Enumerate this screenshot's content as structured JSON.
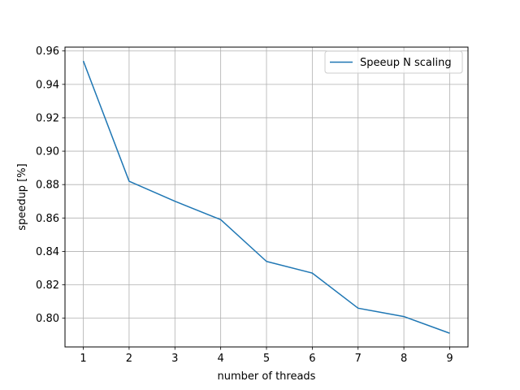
{
  "chart_data": {
    "type": "line",
    "title": "",
    "xlabel": "number of threads",
    "ylabel": "speedup [%]",
    "x": [
      1,
      2,
      3,
      4,
      5,
      6,
      7,
      8,
      9
    ],
    "series": [
      {
        "name": "Speeup N scaling",
        "color": "#1f77b4",
        "values": [
          0.954,
          0.882,
          0.87,
          0.859,
          0.834,
          0.827,
          0.806,
          0.801,
          0.791
        ]
      }
    ],
    "xticks": [
      "1",
      "2",
      "3",
      "4",
      "5",
      "6",
      "7",
      "8",
      "9"
    ],
    "yticks": [
      "0.80",
      "0.82",
      "0.84",
      "0.86",
      "0.88",
      "0.90",
      "0.92",
      "0.94",
      "0.96"
    ],
    "xlim": [
      0.6,
      9.4
    ],
    "ylim": [
      0.7828,
      0.9623
    ],
    "grid": true,
    "legend_position": "top-right"
  }
}
